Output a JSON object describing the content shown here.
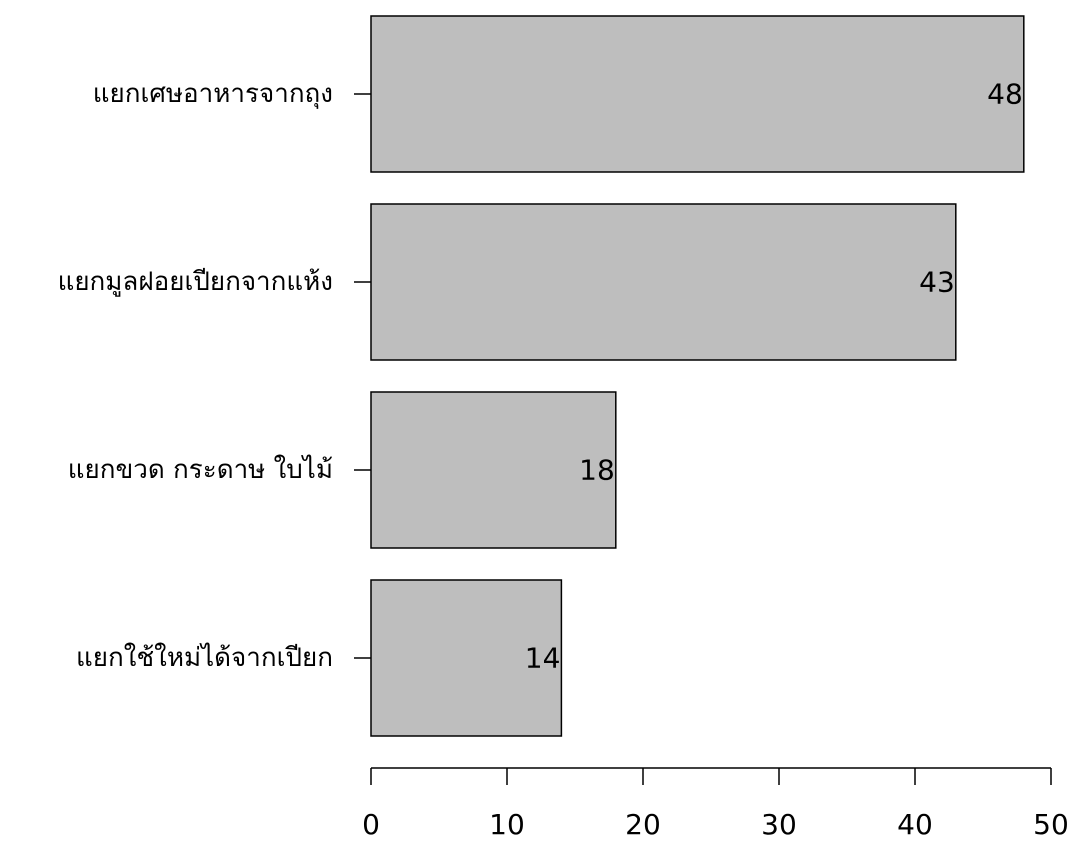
{
  "chart_data": {
    "type": "bar",
    "orientation": "horizontal",
    "title": "",
    "xlabel": "",
    "ylabel": "",
    "categories": [
      "แยกเศษอาหารจากถุง",
      "แยกมูลฝอยเปียกจากแห้ง",
      "แยกขวด กระดาษ ใบไม้",
      "แยกใช้ใหม่ได้จากเปียก"
    ],
    "values": [
      48,
      43,
      18,
      14
    ],
    "data_labels": [
      "48",
      "43",
      "18",
      "14"
    ],
    "xlim": [
      0,
      50
    ],
    "xticks": [
      0,
      10,
      20,
      30,
      40,
      50
    ],
    "xtick_labels": [
      "0",
      "10",
      "20",
      "30",
      "40",
      "50"
    ],
    "grid": false,
    "legend": "none",
    "colors": {
      "bar_fill": "#bebebe",
      "bar_stroke": "#000000",
      "axis": "#000000",
      "text": "#000000"
    }
  }
}
